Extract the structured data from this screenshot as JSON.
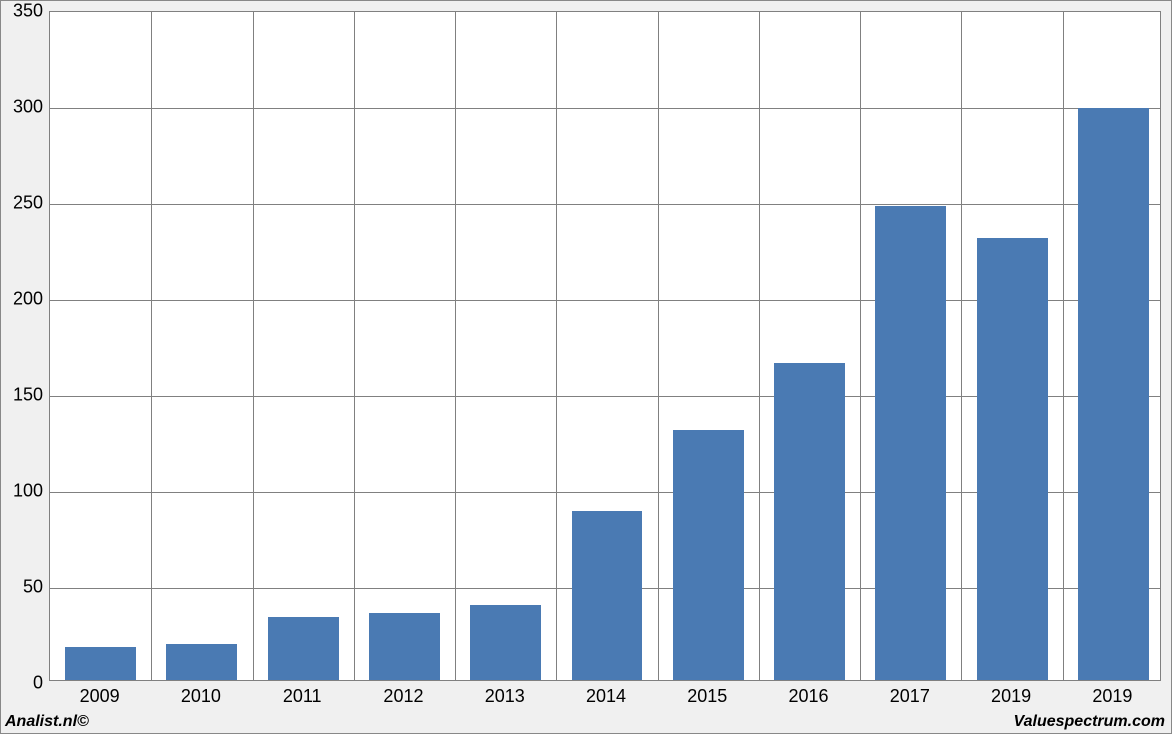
{
  "chart": {
    "type": "bar",
    "categories": [
      "2009",
      "2010",
      "2011",
      "2012",
      "2013",
      "2014",
      "2015",
      "2016",
      "2017",
      "2019",
      "2019"
    ],
    "values": [
      17,
      19,
      33,
      35,
      39,
      88,
      130,
      165,
      247,
      230,
      298
    ],
    "bar_color": "#4a7ab3",
    "ylim": [
      0,
      350
    ],
    "ytick_step": 50,
    "yticks": [
      0,
      50,
      100,
      150,
      200,
      250,
      300,
      350
    ],
    "background_color": "#ffffff",
    "frame_background": "#f0f0f0",
    "grid_color": "#808080",
    "border_color": "#808080",
    "bar_width_ratio": 0.7,
    "tick_label_fontsize": 18,
    "tick_label_color": "#000000",
    "footer_fontsize": 16
  },
  "footer": {
    "left": "Analist.nl©",
    "right": "Valuespectrum.com"
  }
}
